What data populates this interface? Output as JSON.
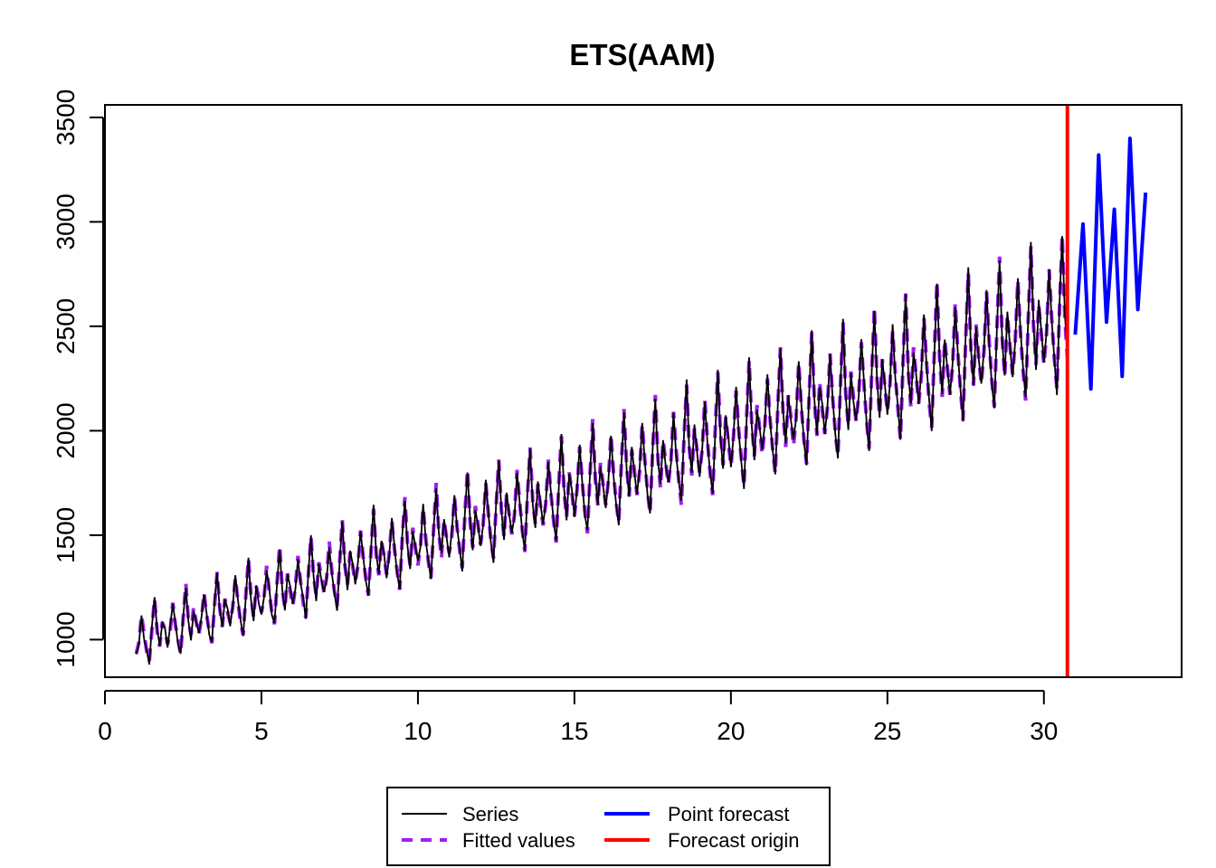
{
  "chart_data": {
    "type": "line",
    "title": "ETS(AAM)",
    "xlabel": "",
    "ylabel": "",
    "xlim": [
      0,
      34.4
    ],
    "ylim": [
      820,
      3560
    ],
    "x_ticks": [
      "0",
      "5",
      "10",
      "15",
      "20",
      "25",
      "30"
    ],
    "y_ticks": [
      "1000",
      "1500",
      "2000",
      "2500",
      "3000",
      "3500"
    ],
    "grid": false,
    "legend_position": "bottom",
    "colors": {
      "series": "#000000",
      "fitted": "#A020F0",
      "forecast": "#0000FF",
      "origin": "#FF0000"
    },
    "frequency": 12,
    "start": 1,
    "seasonal_pattern": [
      0.94,
      1.0,
      1.12,
      1.02,
      0.94,
      0.88,
      1.04,
      1.18,
      1.02,
      0.94,
      1.06,
      1.0
    ],
    "trend_start": 990,
    "trend_slope_per_period": 4.25,
    "noise_amplitude": 22,
    "series": [
      {
        "name": "Series",
        "style": "solid"
      },
      {
        "name": "Fitted values",
        "style": "dashed"
      },
      {
        "name": "Point forecast",
        "style": "solid"
      },
      {
        "name": "Forecast origin",
        "style": "vertical-line"
      }
    ],
    "forecast_origin_x": 30.75,
    "forecast": {
      "x": [
        31.0,
        31.25,
        31.5,
        31.75,
        32.0,
        32.25,
        32.5,
        32.75,
        33.0,
        33.25
      ],
      "values": [
        2460,
        2990,
        2200,
        3320,
        2520,
        3060,
        2260,
        3400,
        2580,
        3140
      ]
    }
  },
  "legend": {
    "items": [
      {
        "label": "Series"
      },
      {
        "label": "Fitted values"
      },
      {
        "label": "Point forecast"
      },
      {
        "label": "Forecast origin"
      }
    ]
  }
}
